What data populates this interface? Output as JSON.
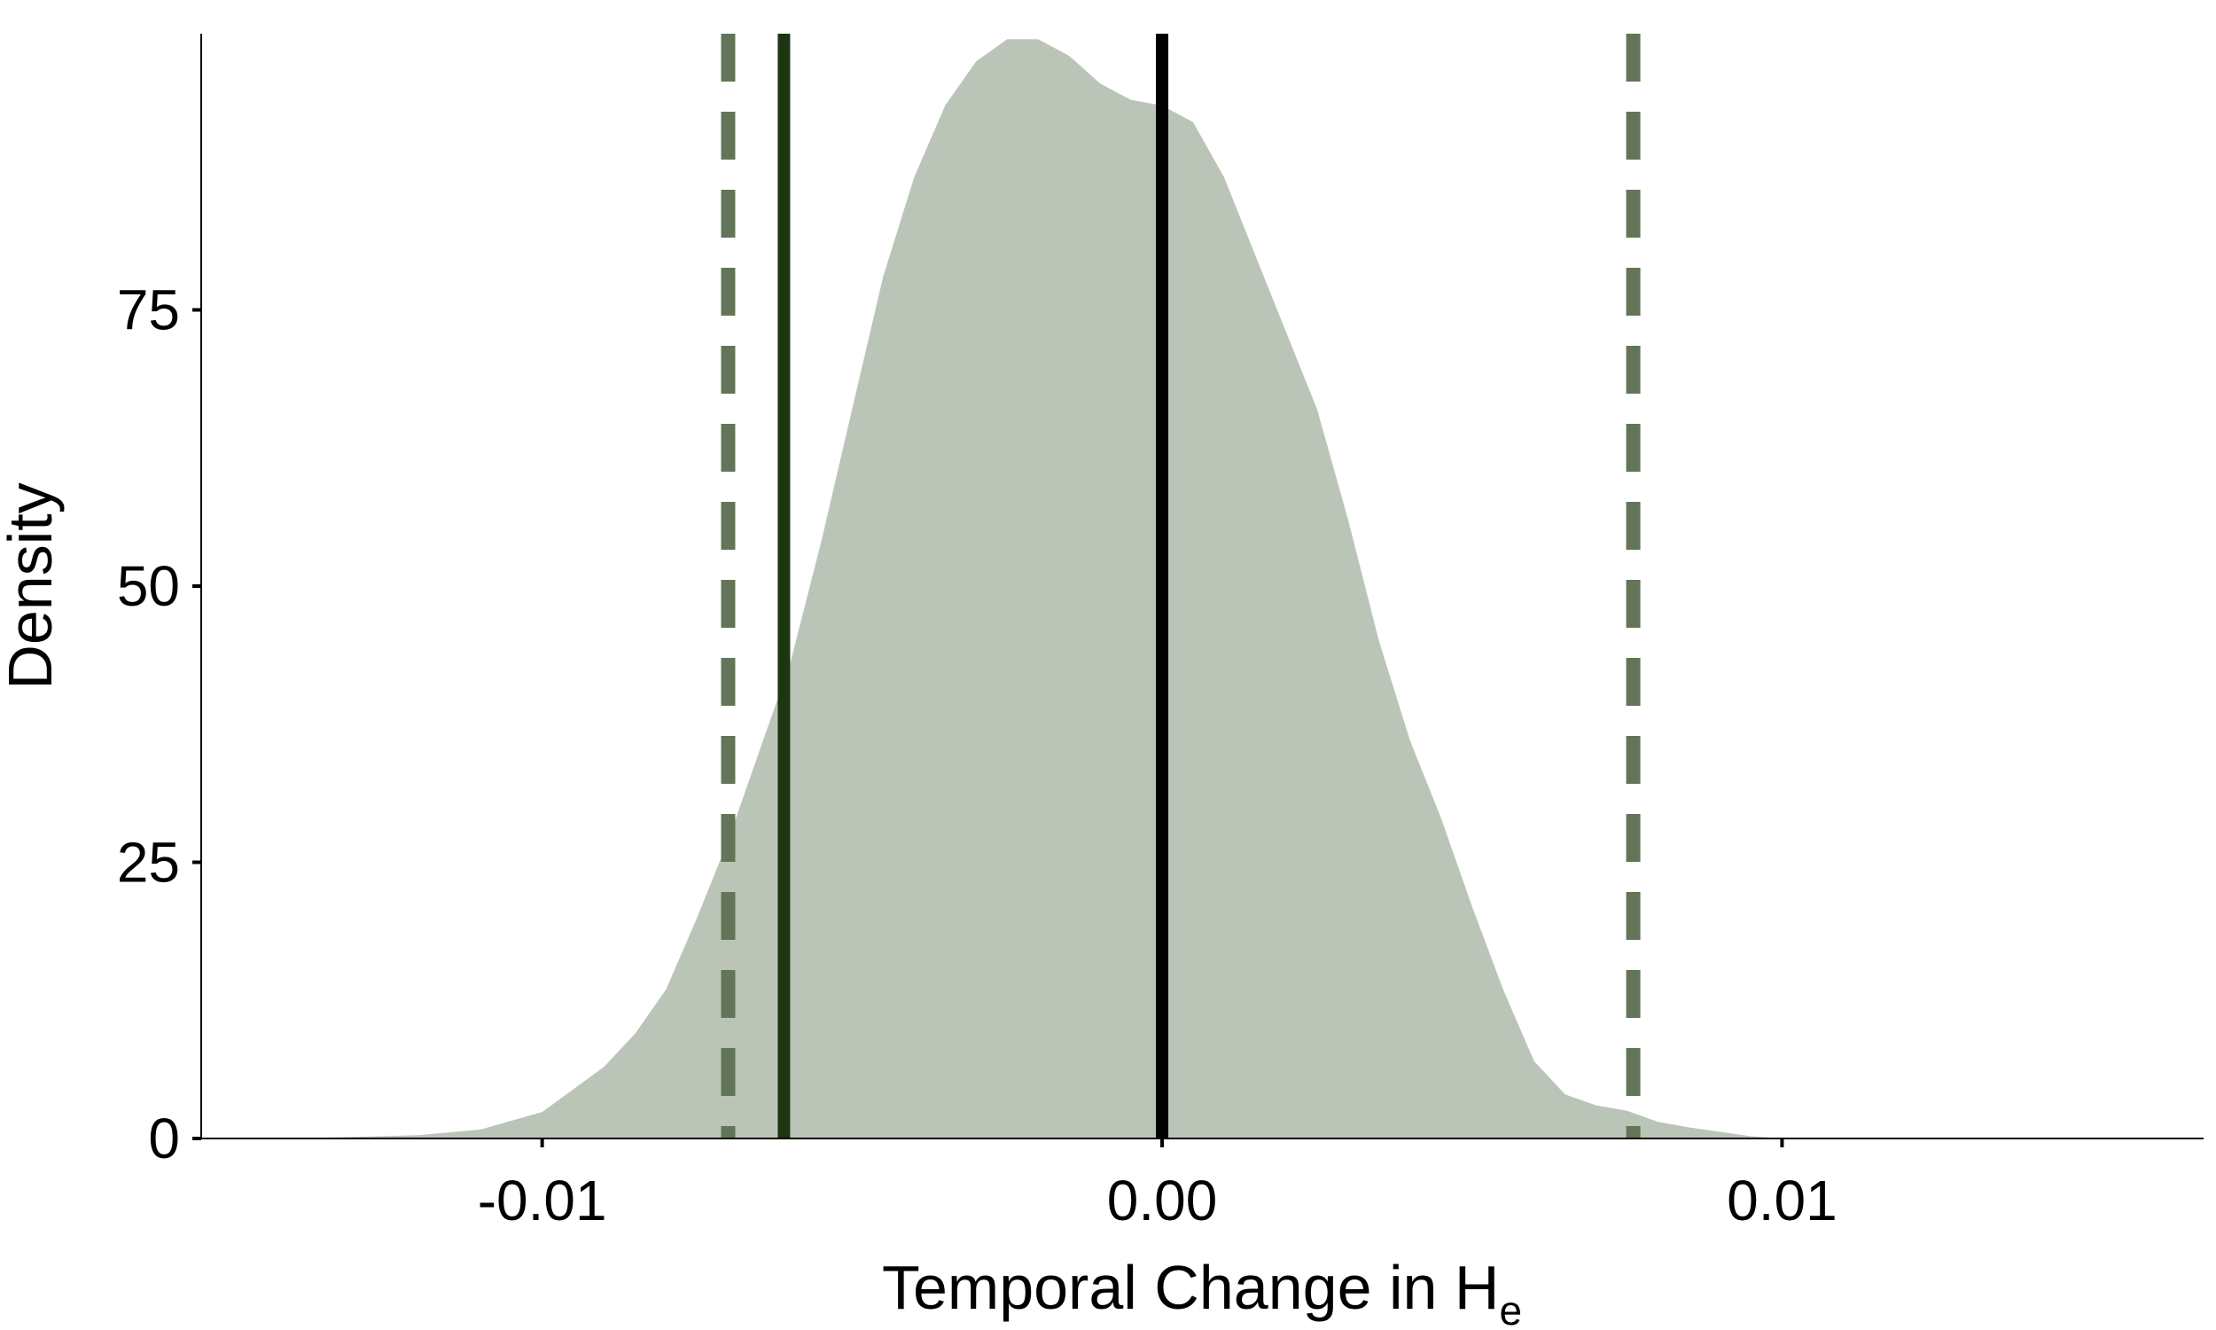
{
  "chart_data": {
    "type": "area",
    "title": "",
    "xlabel_main": "Temporal Change in H",
    "xlabel_subscript": "e",
    "ylabel": "Density",
    "xlim": [
      -0.0155,
      0.0168
    ],
    "ylim": [
      0,
      100
    ],
    "x_ticks": [
      -0.01,
      0.0,
      0.01
    ],
    "x_tick_labels": [
      "-0.01",
      "0.00",
      "0.01"
    ],
    "y_ticks": [
      0,
      25,
      50,
      75
    ],
    "y_tick_labels": [
      "0",
      "25",
      "50",
      "75"
    ],
    "grid": false,
    "legend": "none",
    "series": [
      {
        "x": [
          -0.014,
          -0.012,
          -0.011,
          -0.01,
          -0.009,
          -0.0085,
          -0.008,
          -0.0075,
          -0.007,
          -0.0065,
          -0.006,
          -0.0055,
          -0.005,
          -0.0045,
          -0.004,
          -0.0035,
          -0.003,
          -0.0025,
          -0.002,
          -0.0015,
          -0.001,
          -0.0005,
          0.0,
          0.0005,
          0.001,
          0.0015,
          0.002,
          0.0025,
          0.003,
          0.0035,
          0.004,
          0.0045,
          0.005,
          0.0055,
          0.006,
          0.0065,
          0.007,
          0.0075,
          0.008,
          0.0085,
          0.009,
          0.0095,
          0.01,
          0.0105,
          0.011,
          0.0115,
          0.012,
          0.0125,
          0.013,
          0.0135,
          0.014,
          0.0155
        ],
        "y": [
          0.0,
          0.3,
          0.8,
          2.4,
          6.5,
          9.5,
          13.5,
          20.0,
          27.0,
          35.0,
          43.0,
          54.0,
          66.0,
          78.0,
          87.0,
          93.5,
          97.5,
          99.5,
          99.5,
          98.0,
          95.5,
          94.0,
          93.5,
          92.0,
          87.0,
          80.0,
          73.0,
          66.0,
          56.0,
          45.0,
          36.0,
          29.0,
          21.0,
          13.5,
          7.0,
          4.0,
          3.0,
          2.5,
          1.5,
          1.0,
          0.6,
          0.2,
          0.0,
          0.0,
          0.0,
          0.0,
          0.0,
          0.0,
          0.0,
          0.0,
          0.0,
          0.0
        ],
        "fill": "#bac5b7"
      }
    ],
    "vlines": [
      {
        "x": -0.007,
        "style": "dashed",
        "color": "#637558"
      },
      {
        "x": -0.0061,
        "style": "solid",
        "color": "#1e3512"
      },
      {
        "x": 0.0,
        "style": "solid",
        "color": "#000000"
      },
      {
        "x": 0.0076,
        "style": "dashed",
        "color": "#637558"
      }
    ]
  }
}
